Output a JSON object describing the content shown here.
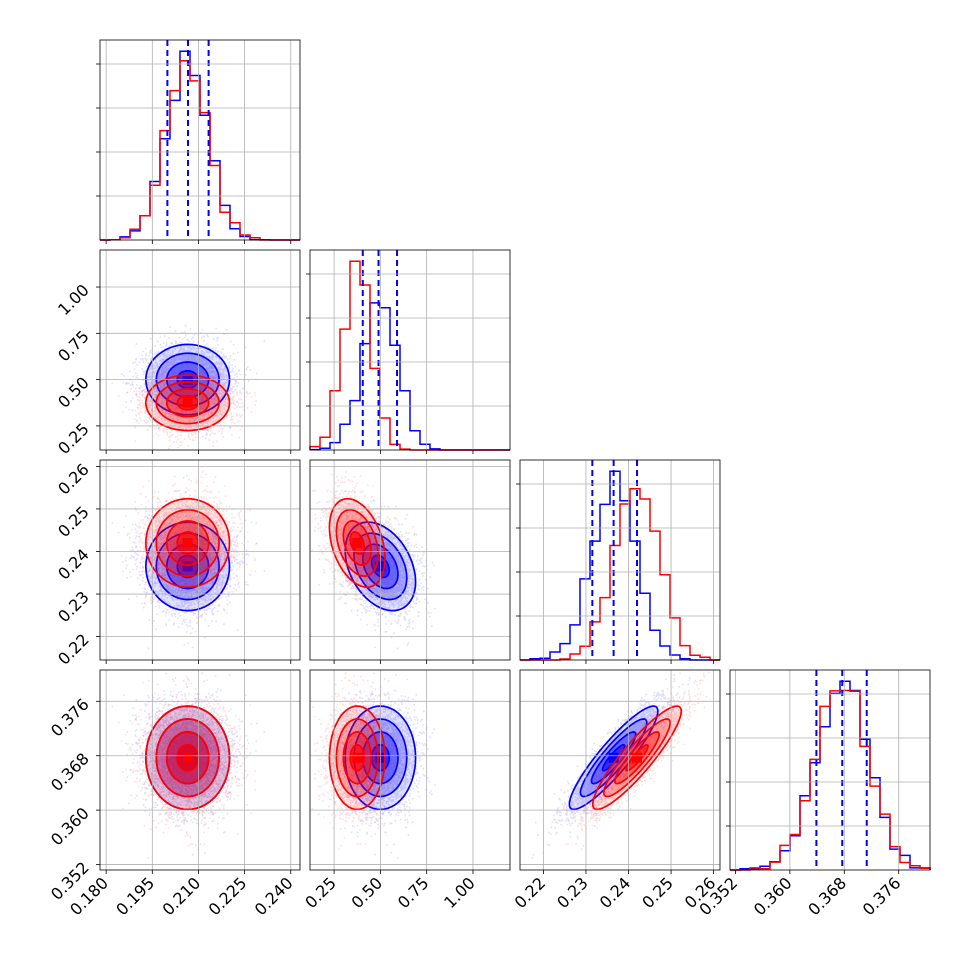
{
  "chart_data": {
    "type": "corner",
    "title": "",
    "grid": true,
    "parameters": [
      {
        "range": [
          0.178,
          0.243
        ],
        "ticks": [
          "0.180",
          "0.195",
          "0.210",
          "0.225",
          "0.240"
        ]
      },
      {
        "range": [
          0.12,
          1.2
        ],
        "ticks": [
          "0.25",
          "0.50",
          "0.75",
          "1.00"
        ]
      },
      {
        "range": [
          0.2145,
          0.2615
        ],
        "ticks": [
          "0.22",
          "0.23",
          "0.24",
          "0.25",
          "0.26"
        ]
      },
      {
        "range": [
          0.3512,
          0.3806
        ],
        "ticks": [
          "0.352",
          "0.360",
          "0.368",
          "0.376"
        ]
      }
    ],
    "series": [
      {
        "color": "#0000ff",
        "mean": [
          0.2065,
          0.5,
          0.2365,
          0.3677
        ],
        "sd": [
          0.0068,
          0.095,
          0.0052,
          0.0038
        ],
        "correlation": [
          [
            1,
            0,
            0,
            0
          ],
          [
            0,
            1,
            -0.35,
            0
          ],
          [
            0,
            -0.35,
            1,
            0.9
          ],
          [
            0,
            0,
            0.9,
            1
          ]
        ],
        "quantiles": [
          [
            0.1999,
            0.2066,
            0.2133
          ],
          [
            0.405,
            0.49,
            0.59
          ],
          [
            0.2315,
            0.2365,
            0.242
          ],
          [
            0.3639,
            0.3677,
            0.3713
          ]
        ]
      },
      {
        "color": "#ff0000",
        "mean": [
          0.2065,
          0.375,
          0.242,
          0.3677
        ],
        "sd": [
          0.0068,
          0.075,
          0.0052,
          0.0038
        ],
        "correlation": [
          [
            1,
            0,
            0,
            0
          ],
          [
            0,
            1,
            -0.35,
            0
          ],
          [
            0,
            -0.35,
            1,
            0.9
          ],
          [
            0,
            0,
            0.9,
            1
          ]
        ]
      }
    ]
  }
}
